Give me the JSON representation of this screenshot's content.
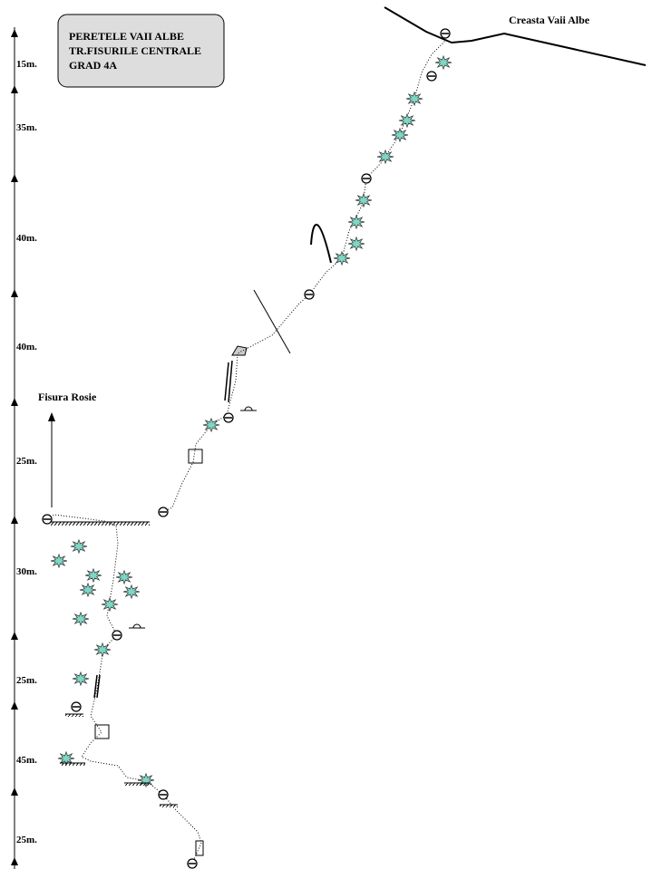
{
  "header": {
    "lines": [
      "PERETELE VAII ALBE",
      "TR.FISURILE CENTRALE",
      "GRAD 4A"
    ]
  },
  "labels": {
    "ridge": "Creasta Vaii Albe",
    "crack": "Fisura Rosie"
  },
  "pitches": [
    "15m.",
    "35m.",
    "40m.",
    "40m.",
    "25m.",
    "30m.",
    "25m.",
    "45m.",
    "25m."
  ]
}
